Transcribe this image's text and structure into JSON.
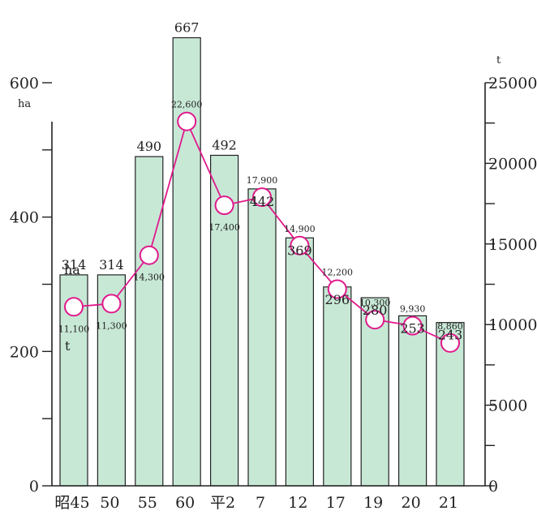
{
  "chart_data": {
    "type": "bar",
    "categories": [
      "昭45",
      "50",
      "55",
      "60",
      "平2",
      "7",
      "12",
      "17",
      "19",
      "20",
      "21"
    ],
    "series": [
      {
        "name": "",
        "type": "bar",
        "axis": "left",
        "values": [
          314,
          314,
          490,
          667,
          492,
          442,
          369,
          296,
          280,
          253,
          243
        ],
        "value_labels": [
          "314",
          "314",
          "490",
          "667",
          "492",
          "442",
          "369",
          "296",
          "280",
          "253",
          "243"
        ],
        "label_placement": [
          "above",
          "above",
          "above",
          "above",
          "above",
          "inside",
          "inside",
          "inside",
          "inside",
          "inside",
          "inside"
        ],
        "color": "#c8e8d6"
      },
      {
        "name": "",
        "type": "line",
        "axis": "right",
        "values": [
          11100,
          11300,
          14300,
          22600,
          17400,
          17900,
          14900,
          12200,
          10300,
          9930,
          8860
        ],
        "value_labels": [
          "11,100",
          "11,300",
          "14,300",
          "22,600",
          "17,400",
          "17,900",
          "14,900",
          "12,200",
          "10,300",
          "9,930",
          "8,860"
        ],
        "label_placement": [
          "below",
          "below",
          "below",
          "inside",
          "below",
          "above",
          "above",
          "above",
          "above",
          "above",
          "above"
        ],
        "color": "#e0198c"
      }
    ],
    "ylim_left": [
      0,
      600
    ],
    "yticks_left": [
      0,
      200,
      400,
      600
    ],
    "yticks_left_minor": [
      100,
      300,
      500
    ],
    "ylim_right": [
      0,
      25000
    ],
    "yticks_right": [
      0,
      5000,
      10000,
      15000,
      20000,
      25000
    ],
    "yticks_right_minor": [
      2500,
      7500,
      12500,
      17500,
      22500
    ],
    "ylabel_left": "ha",
    "ylabel_right": "t",
    "first_bar_unit": "ha",
    "first_point_unit": "t",
    "grid": false,
    "legend": "none"
  }
}
